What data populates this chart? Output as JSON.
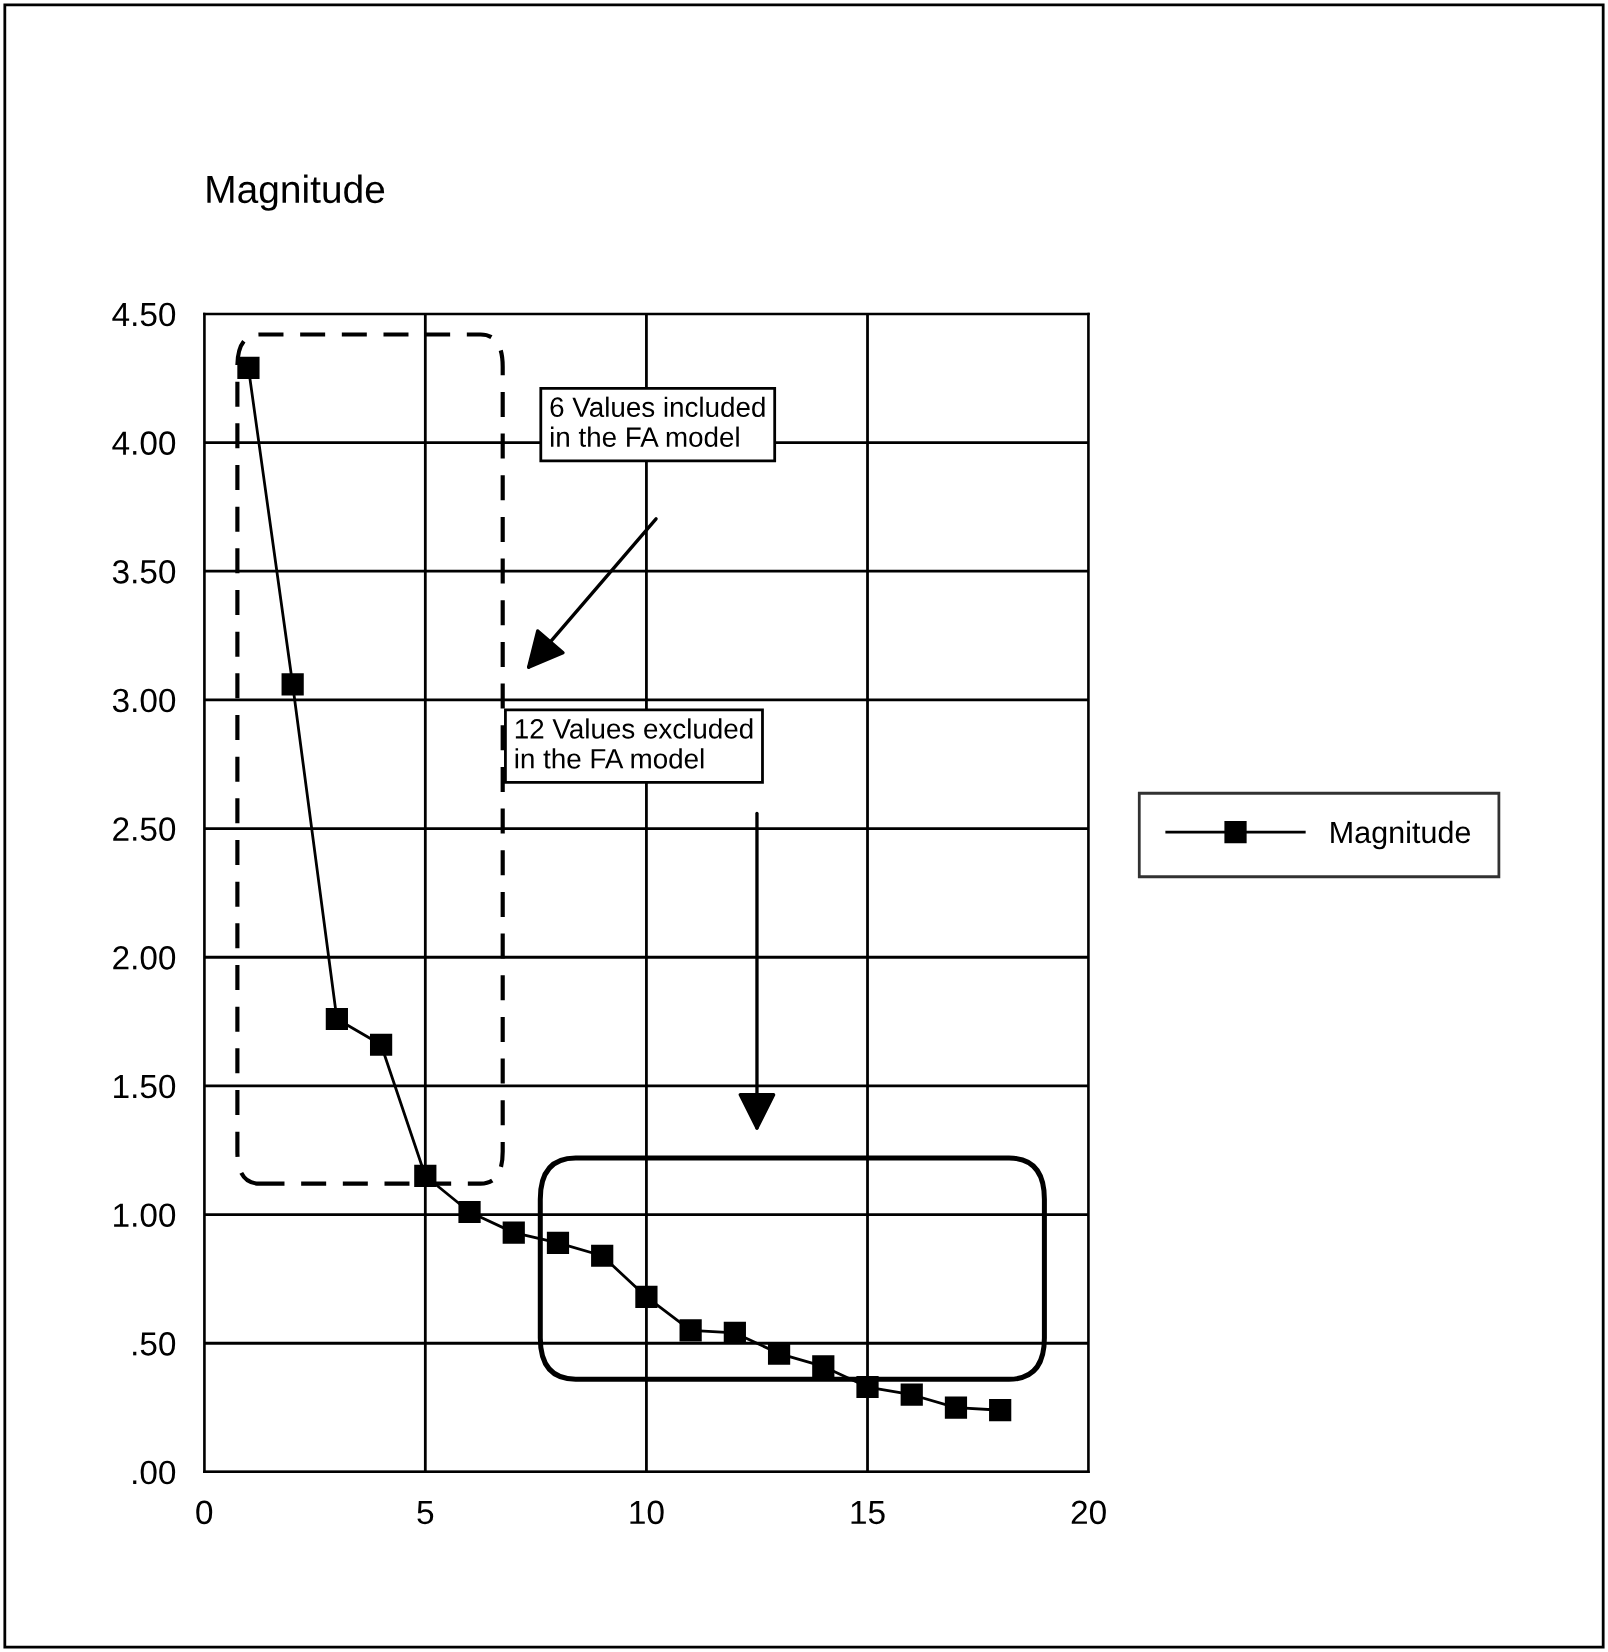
{
  "chart_data": {
    "type": "line",
    "title": "Magnitude",
    "x": [
      1,
      2,
      3,
      4,
      5,
      6,
      7,
      8,
      9,
      10,
      11,
      12,
      13,
      14,
      15,
      16,
      17,
      18
    ],
    "series": [
      {
        "name": "Magnitude",
        "color": "#000000",
        "values": [
          4.29,
          3.06,
          1.76,
          1.66,
          1.15,
          1.01,
          0.93,
          0.89,
          0.84,
          0.68,
          0.55,
          0.54,
          0.46,
          0.41,
          0.33,
          0.3,
          0.25,
          0.24
        ]
      }
    ],
    "xlim": [
      0,
      20
    ],
    "xticks": [
      0,
      5,
      10,
      15,
      20
    ],
    "ylim": [
      0,
      4.5
    ],
    "yticks": [
      {
        "value": 0,
        "label": ".00"
      },
      {
        "value": 0.5,
        "label": ".50"
      },
      {
        "value": 1.0,
        "label": "1.00"
      },
      {
        "value": 1.5,
        "label": "1.50"
      },
      {
        "value": 2.0,
        "label": "2.00"
      },
      {
        "value": 2.5,
        "label": "2.50"
      },
      {
        "value": 3.0,
        "label": "3.00"
      },
      {
        "value": 3.5,
        "label": "3.50"
      },
      {
        "value": 4.0,
        "label": "4.00"
      },
      {
        "value": 4.5,
        "label": "4.50"
      }
    ],
    "annotations": [
      "6 Values included\nin the FA model",
      "12 Values excluded\nin the FA model"
    ],
    "grid": true,
    "legend": "right",
    "marker": "square",
    "line_style": "solid"
  }
}
